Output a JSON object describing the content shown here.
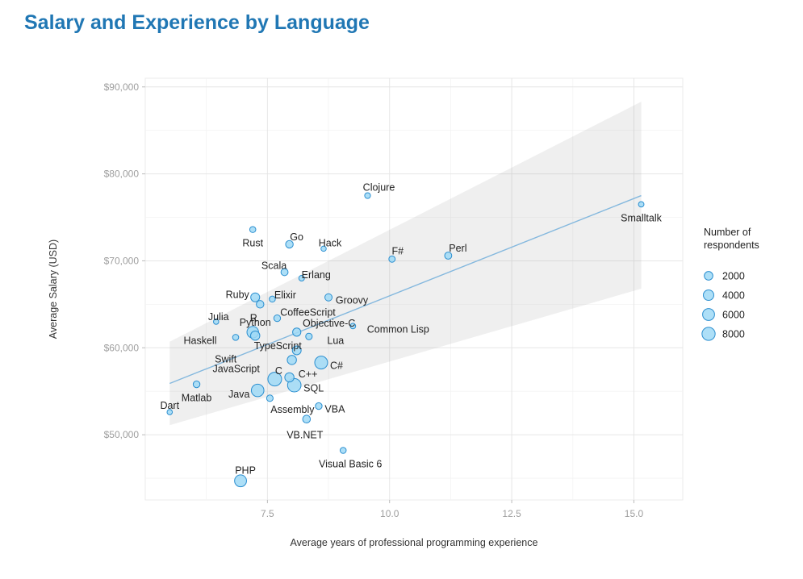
{
  "chart_data": {
    "type": "scatter",
    "title": "Salary and Experience by Language",
    "xlabel": "Average years of professional programming experience",
    "ylabel": "Average Salary (USD)",
    "xlim": [
      5.0,
      16.0
    ],
    "ylim": [
      42500,
      91000
    ],
    "x_ticks": [
      7.5,
      10.0,
      12.5,
      15.0
    ],
    "x_tick_labels": [
      "7.5",
      "10.0",
      "12.5",
      "15.0"
    ],
    "y_ticks": [
      50000,
      60000,
      70000,
      80000,
      90000
    ],
    "y_tick_labels": [
      "$50,000",
      "$60,000",
      "$70,000",
      "$80,000",
      "$90,000"
    ],
    "grid": true,
    "trend_line": {
      "x": [
        5.5,
        15.15
      ],
      "y": [
        55900,
        77500
      ]
    },
    "confidence_band": {
      "upper": [
        [
          5.5,
          60700
        ],
        [
          15.15,
          88300
        ]
      ],
      "lower": [
        [
          5.5,
          51100
        ],
        [
          15.15,
          66800
        ]
      ]
    },
    "legend": {
      "title": "Number of respondents",
      "position": "right",
      "entries": [
        {
          "label": "2000",
          "value": 2000
        },
        {
          "label": "4000",
          "value": 4000
        },
        {
          "label": "6000",
          "value": 6000
        },
        {
          "label": "8000",
          "value": 8000
        }
      ]
    },
    "points": [
      {
        "language": "Clojure",
        "x": 9.55,
        "y": 77500,
        "respondents": 300
      },
      {
        "language": "Smalltalk",
        "x": 15.15,
        "y": 76500,
        "respondents": 200
      },
      {
        "language": "Rust",
        "x": 7.2,
        "y": 73600,
        "respondents": 400
      },
      {
        "language": "Go",
        "x": 7.95,
        "y": 71900,
        "respondents": 1200
      },
      {
        "language": "Hack",
        "x": 8.65,
        "y": 71400,
        "respondents": 150
      },
      {
        "language": "F#",
        "x": 10.05,
        "y": 70200,
        "respondents": 500
      },
      {
        "language": "Perl",
        "x": 11.2,
        "y": 70600,
        "respondents": 900
      },
      {
        "language": "Scala",
        "x": 7.85,
        "y": 68700,
        "respondents": 900
      },
      {
        "language": "Erlang",
        "x": 8.2,
        "y": 68000,
        "respondents": 250
      },
      {
        "language": "Ruby",
        "x": 7.25,
        "y": 65800,
        "respondents": 2300
      },
      {
        "language": "Elixir",
        "x": 7.6,
        "y": 65600,
        "respondents": 400
      },
      {
        "language": "Groovy",
        "x": 8.75,
        "y": 65800,
        "respondents": 1000
      },
      {
        "language": "R",
        "x": 7.35,
        "y": 65000,
        "respondents": 1200
      },
      {
        "language": "CoffeeScript",
        "x": 7.7,
        "y": 63400,
        "respondents": 700
      },
      {
        "language": "Julia",
        "x": 6.45,
        "y": 63000,
        "respondents": 150
      },
      {
        "language": "Common Lisp",
        "x": 9.25,
        "y": 62500,
        "respondents": 200
      },
      {
        "language": "Objective-C",
        "x": 8.1,
        "y": 61800,
        "respondents": 1700
      },
      {
        "language": "Python",
        "x": 7.2,
        "y": 61800,
        "respondents": 5500
      },
      {
        "language": "Haskell",
        "x": 6.85,
        "y": 61200,
        "respondents": 400
      },
      {
        "language": "TypeScript",
        "x": 7.25,
        "y": 61400,
        "respondents": 2600
      },
      {
        "language": "Lua",
        "x": 8.35,
        "y": 61300,
        "respondents": 600
      },
      {
        "language": "Swift",
        "x": 8.1,
        "y": 59700,
        "respondents": 2200
      },
      {
        "language": "C#",
        "x": 8.6,
        "y": 58300,
        "respondents": 7500
      },
      {
        "language": "JavaScript",
        "x": 8.0,
        "y": 58600,
        "respondents": 2600
      },
      {
        "language": "C",
        "x": 7.65,
        "y": 56400,
        "respondents": 9000
      },
      {
        "language": "C++",
        "x": 7.95,
        "y": 56600,
        "respondents": 2600
      },
      {
        "language": "SQL",
        "x": 8.05,
        "y": 55700,
        "respondents": 8500
      },
      {
        "language": "Matlab",
        "x": 6.05,
        "y": 55800,
        "respondents": 700
      },
      {
        "language": "Java",
        "x": 7.3,
        "y": 55100,
        "respondents": 7000
      },
      {
        "language": "Assembly",
        "x": 7.55,
        "y": 54200,
        "respondents": 600
      },
      {
        "language": "VBA",
        "x": 8.55,
        "y": 53300,
        "respondents": 700
      },
      {
        "language": "Dart",
        "x": 5.5,
        "y": 52600,
        "respondents": 150
      },
      {
        "language": "VB.NET",
        "x": 8.3,
        "y": 51800,
        "respondents": 1300
      },
      {
        "language": "Visual Basic 6",
        "x": 9.05,
        "y": 48200,
        "respondents": 400
      },
      {
        "language": "PHP",
        "x": 6.95,
        "y": 44700,
        "respondents": 6000
      }
    ]
  }
}
